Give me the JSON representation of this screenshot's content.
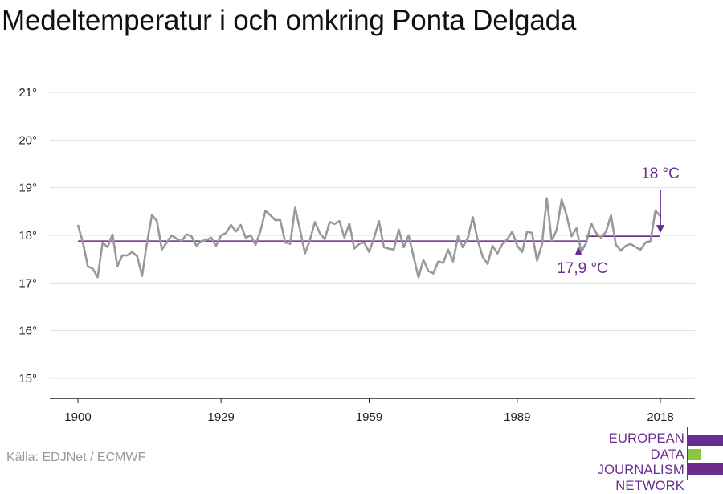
{
  "title": "Medeltemperatur i och omkring Ponta Delgada",
  "source": "Källa: EDJNet / ECMWF",
  "logo": {
    "lines": [
      "EUROPEAN",
      "DATA JOURNALISM",
      "NETWORK"
    ]
  },
  "colors": {
    "series": "#999999",
    "accent": "#6a2c91",
    "logo_green": "#8cc63f",
    "grid": "#dddddd",
    "axis": "#222222"
  },
  "chart_data": {
    "type": "line",
    "title": "Medeltemperatur i och omkring Ponta Delgada",
    "xlabel": "",
    "ylabel": "",
    "xlim": [
      1900,
      2018
    ],
    "ylim": [
      15,
      21
    ],
    "x_ticks": [
      1900,
      1929,
      1959,
      1989,
      2018
    ],
    "y_ticks": [
      15,
      16,
      17,
      18,
      19,
      20,
      21
    ],
    "y_tick_suffix": "°",
    "grid": "horizontal",
    "series": [
      {
        "x": [
          1900,
          1901,
          1902,
          1903,
          1904,
          1905,
          1906,
          1907,
          1908,
          1909,
          1910,
          1911,
          1912,
          1913,
          1914,
          1915,
          1916,
          1917,
          1918,
          1919,
          1920,
          1921,
          1922,
          1923,
          1924,
          1925,
          1926,
          1927,
          1928,
          1929,
          1930,
          1931,
          1932,
          1933,
          1934,
          1935,
          1936,
          1937,
          1938,
          1939,
          1940,
          1941,
          1942,
          1943,
          1944,
          1945,
          1946,
          1947,
          1948,
          1949,
          1950,
          1951,
          1952,
          1953,
          1954,
          1955,
          1956,
          1957,
          1958,
          1959,
          1960,
          1961,
          1962,
          1963,
          1964,
          1965,
          1966,
          1967,
          1968,
          1969,
          1970,
          1971,
          1972,
          1973,
          1974,
          1975,
          1976,
          1977,
          1978,
          1979,
          1980,
          1981,
          1982,
          1983,
          1984,
          1985,
          1986,
          1987,
          1988,
          1989,
          1990,
          1991,
          1992,
          1993,
          1994,
          1995,
          1996,
          1997,
          1998,
          1999,
          2000,
          2001,
          2002,
          2003,
          2004,
          2005,
          2006,
          2007,
          2008,
          2009,
          2010,
          2011,
          2012,
          2013,
          2014,
          2015,
          2016,
          2017,
          2018
        ],
        "values": [
          18.22,
          17.85,
          17.35,
          17.3,
          17.12,
          17.85,
          17.75,
          18.02,
          17.35,
          17.58,
          17.58,
          17.65,
          17.56,
          17.15,
          17.85,
          18.43,
          18.3,
          17.7,
          17.85,
          18.0,
          17.93,
          17.88,
          18.02,
          17.98,
          17.78,
          17.88,
          17.9,
          17.95,
          17.78,
          18.0,
          18.05,
          18.22,
          18.08,
          18.22,
          17.95,
          18.0,
          17.8,
          18.1,
          18.52,
          18.42,
          18.32,
          18.32,
          17.85,
          17.82,
          18.58,
          18.12,
          17.62,
          17.9,
          18.28,
          18.05,
          17.92,
          18.28,
          18.24,
          18.3,
          17.95,
          18.25,
          17.72,
          17.82,
          17.85,
          17.65,
          17.95,
          18.3,
          17.75,
          17.72,
          17.7,
          18.12,
          17.75,
          18.0,
          17.55,
          17.12,
          17.48,
          17.25,
          17.2,
          17.45,
          17.42,
          17.7,
          17.45,
          17.98,
          17.75,
          17.95,
          18.38,
          17.9,
          17.55,
          17.4,
          17.78,
          17.62,
          17.82,
          17.92,
          18.08,
          17.78,
          17.65,
          18.08,
          18.05,
          17.47,
          17.8,
          18.78,
          17.88,
          18.12,
          18.75,
          18.42,
          17.98,
          18.15,
          17.65,
          17.85,
          18.25,
          18.05,
          17.95,
          18.08,
          18.42,
          17.8,
          17.68,
          17.78,
          17.82,
          17.75,
          17.7,
          17.85,
          17.88,
          18.52,
          18.4
        ]
      }
    ],
    "reference_lines": [
      {
        "from": 1900,
        "to": 2003,
        "value": 17.88,
        "label": "17,9 °C"
      },
      {
        "from": 2003,
        "to": 2018,
        "value": 17.98,
        "label": "18 °C"
      }
    ]
  }
}
